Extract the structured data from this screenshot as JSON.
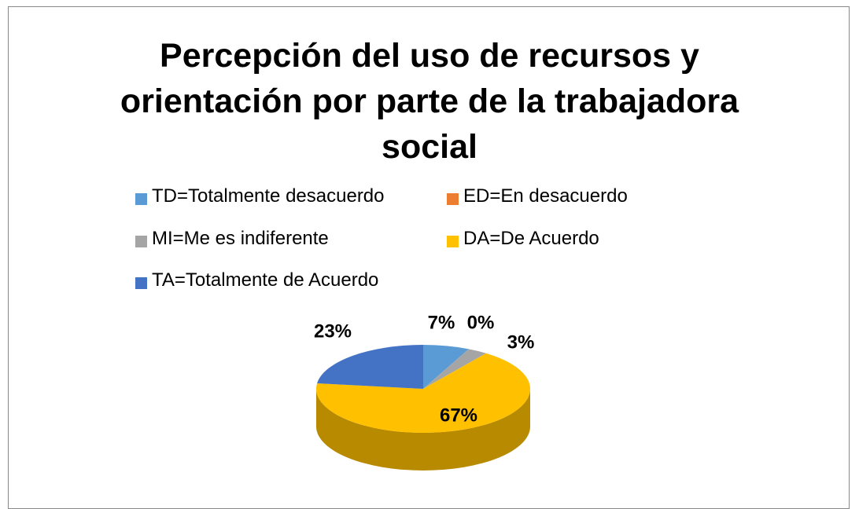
{
  "chart_data": {
    "type": "pie",
    "title": "Percepción del uso de recursos y orientación por parte de la trabajadora social",
    "categories": [
      "TD=Totalmente desacuerdo",
      "ED=En desacuerdo",
      "MI=Me es indiferente",
      "DA=De Acuerdo",
      "TA=Totalmente de Acuerdo"
    ],
    "values": [
      7,
      0,
      3,
      67,
      23
    ],
    "value_labels": [
      "7%",
      "0%",
      "3%",
      "67%",
      "23%"
    ],
    "colors": [
      "#5b9bd5",
      "#ed7d31",
      "#a5a5a5",
      "#ffc000",
      "#4472c4"
    ],
    "legend": "top",
    "three_d": true
  }
}
